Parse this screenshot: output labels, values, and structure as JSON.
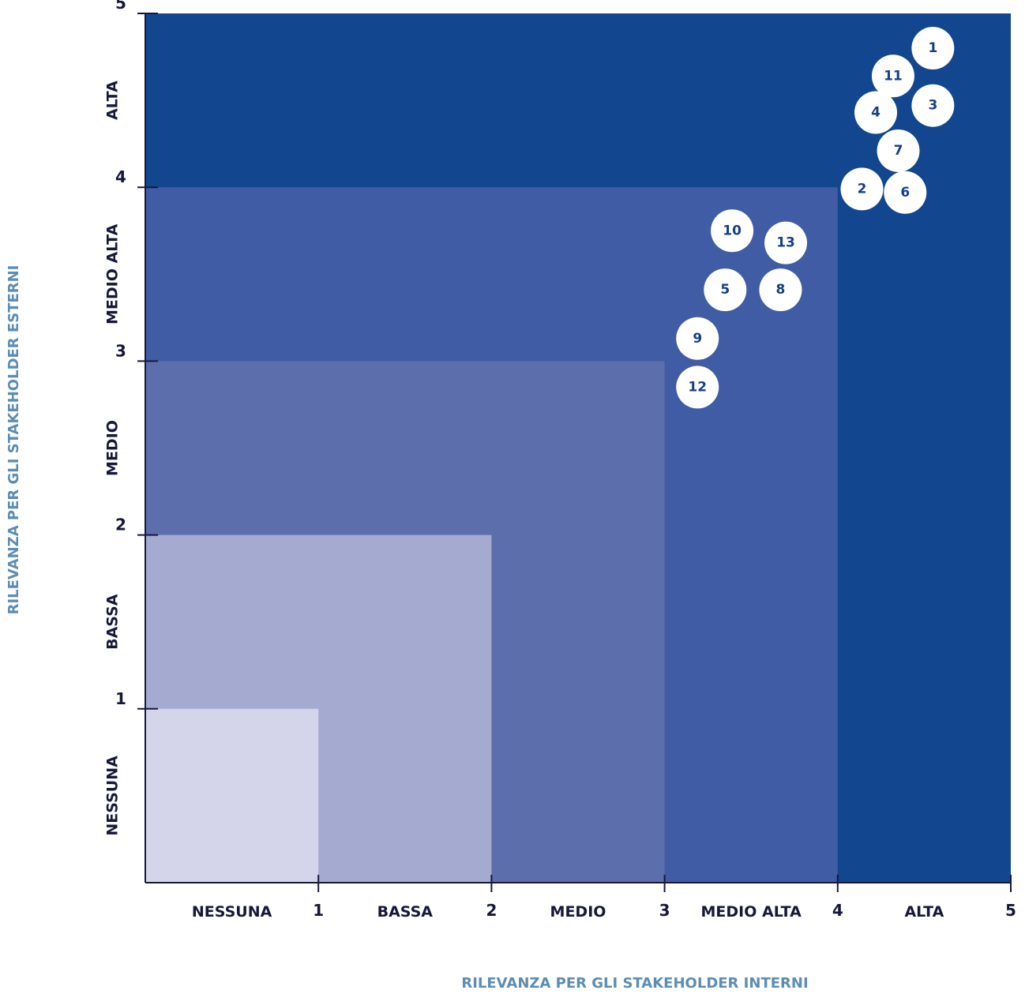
{
  "chart_data": {
    "type": "scatter",
    "xlabel": "RILEVANZA PER GLI STAKEHOLDER INTERNI",
    "ylabel": "RILEVANZA PER GLI STAKEHOLDER ESTERNI",
    "xlim": [
      0,
      5
    ],
    "ylim": [
      0,
      5
    ],
    "x_ticks": [
      "1",
      "2",
      "3",
      "4",
      "5"
    ],
    "y_ticks": [
      "1",
      "2",
      "3",
      "4",
      "5"
    ],
    "x_bands": [
      "NESSUNA",
      "BASSA",
      "MEDIO",
      "MEDIO ALTA",
      "ALTA"
    ],
    "y_bands": [
      "NESSUNA",
      "BASSA",
      "MEDIO",
      "MEDIO ALTA",
      "ALTA"
    ],
    "zones": [
      {
        "max": 5,
        "color": "#12468f"
      },
      {
        "max": 4,
        "color": "#3f5ca4"
      },
      {
        "max": 3,
        "color": "#5c6eab"
      },
      {
        "max": 2,
        "color": "#a5aad1"
      },
      {
        "max": 1,
        "color": "#d4d4eb"
      }
    ],
    "points": [
      {
        "label": "1",
        "x": 4.55,
        "y": 4.8
      },
      {
        "label": "11",
        "x": 4.32,
        "y": 4.64
      },
      {
        "label": "3",
        "x": 4.55,
        "y": 4.47
      },
      {
        "label": "4",
        "x": 4.22,
        "y": 4.43
      },
      {
        "label": "7",
        "x": 4.35,
        "y": 4.21
      },
      {
        "label": "2",
        "x": 4.14,
        "y": 3.99
      },
      {
        "label": "6",
        "x": 4.39,
        "y": 3.97
      },
      {
        "label": "10",
        "x": 3.39,
        "y": 3.75
      },
      {
        "label": "13",
        "x": 3.7,
        "y": 3.68
      },
      {
        "label": "5",
        "x": 3.35,
        "y": 3.41
      },
      {
        "label": "8",
        "x": 3.67,
        "y": 3.41
      },
      {
        "label": "9",
        "x": 3.19,
        "y": 3.13
      },
      {
        "label": "12",
        "x": 3.19,
        "y": 2.85
      }
    ]
  }
}
